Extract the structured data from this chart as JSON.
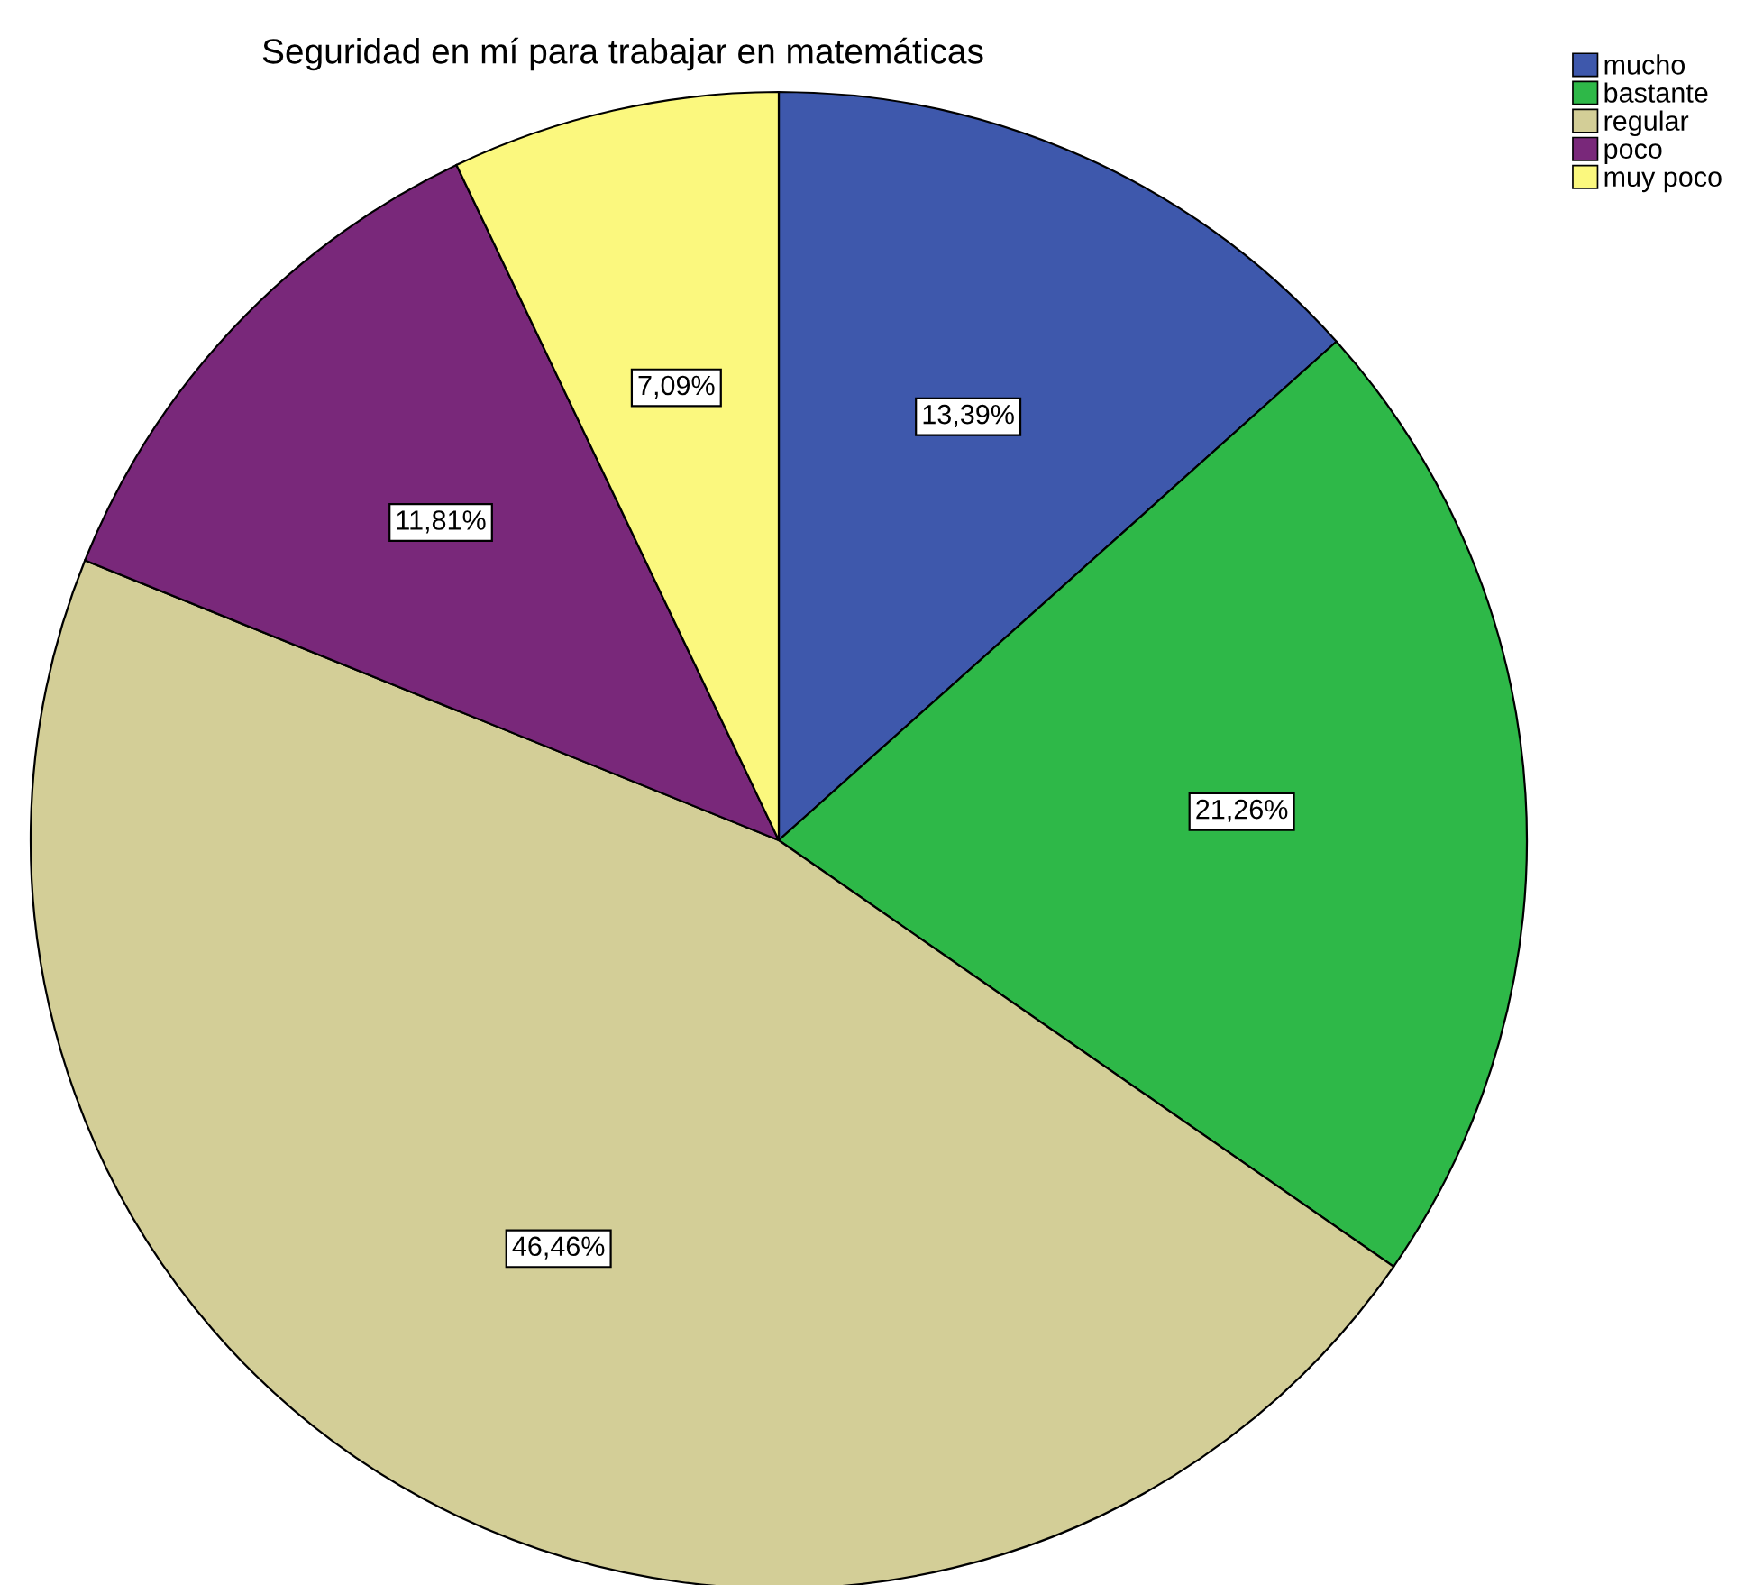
{
  "chart_data": {
    "type": "pie",
    "title": "Seguridad en mí para trabajar en matemáticas",
    "categories": [
      "mucho",
      "bastante",
      "regular",
      "poco",
      "muy poco"
    ],
    "values": [
      13.39,
      21.26,
      46.46,
      11.81,
      7.09
    ],
    "value_labels": [
      "13,39%",
      "21,26%",
      "46,46%",
      "11,81%",
      "7,09%"
    ],
    "colors": [
      "#3e58ac",
      "#2eb848",
      "#d3ce97",
      "#79287a",
      "#fbf87e"
    ],
    "legend": "top right"
  }
}
